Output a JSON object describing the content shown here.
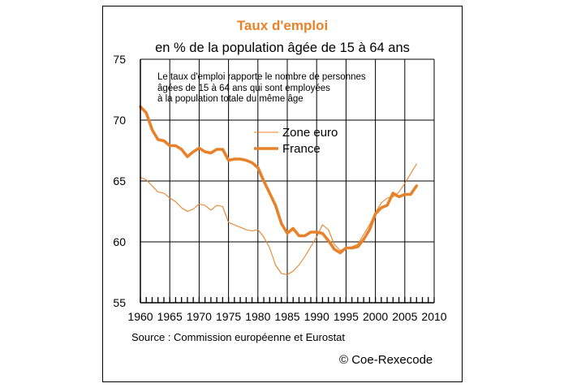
{
  "chart_data": {
    "type": "line",
    "title": "Taux d'emploi",
    "subtitle": "en % de la population âgée de 15 à 64 ans",
    "note_lines": [
      "Le taux d'emploi rapporte le nombre de personnes",
      "âgées de 15 à 64 ans qui sont employées",
      "à la population totale du même âge"
    ],
    "xlabel": "",
    "ylabel": "",
    "xlim": [
      1960,
      2010
    ],
    "ylim": [
      55,
      75
    ],
    "x_ticks": [
      1960,
      1965,
      1970,
      1975,
      1980,
      1985,
      1990,
      1995,
      2000,
      2005,
      2010
    ],
    "y_ticks": [
      55,
      60,
      65,
      70,
      75
    ],
    "grid": true,
    "legend_position": "upper-middle",
    "series": [
      {
        "name": "Zone euro",
        "color": "#e8822a",
        "style": "thin",
        "x": [
          1960,
          1961,
          1962,
          1963,
          1964,
          1965,
          1966,
          1967,
          1968,
          1969,
          1970,
          1971,
          1972,
          1973,
          1974,
          1975,
          1976,
          1977,
          1978,
          1979,
          1980,
          1981,
          1982,
          1983,
          1984,
          1985,
          1986,
          1987,
          1988,
          1989,
          1990,
          1991,
          1992,
          1993,
          1994,
          1995,
          1996,
          1997,
          1998,
          1999,
          2000,
          2001,
          2002,
          2003,
          2004,
          2005,
          2006,
          2007
        ],
        "values": [
          65.3,
          65.1,
          64.6,
          64.1,
          64.0,
          63.6,
          63.3,
          62.8,
          62.5,
          62.7,
          63.1,
          63.0,
          62.6,
          63.0,
          62.9,
          61.6,
          61.4,
          61.2,
          61.0,
          60.9,
          61.0,
          60.4,
          59.5,
          58.1,
          57.4,
          57.3,
          57.6,
          58.1,
          58.8,
          59.6,
          60.4,
          61.4,
          61.0,
          59.8,
          59.3,
          59.5,
          59.6,
          59.8,
          60.6,
          61.4,
          62.4,
          63.2,
          63.6,
          63.7,
          64.1,
          64.8,
          65.6,
          66.4
        ]
      },
      {
        "name": "France",
        "color": "#e8822a",
        "style": "thick",
        "x": [
          1960,
          1961,
          1962,
          1963,
          1964,
          1965,
          1966,
          1967,
          1968,
          1969,
          1970,
          1971,
          1972,
          1973,
          1974,
          1975,
          1976,
          1977,
          1978,
          1979,
          1980,
          1981,
          1982,
          1983,
          1984,
          1985,
          1986,
          1987,
          1988,
          1989,
          1990,
          1991,
          1992,
          1993,
          1994,
          1995,
          1996,
          1997,
          1998,
          1999,
          2000,
          2001,
          2002,
          2003,
          2004,
          2005,
          2006,
          2007
        ],
        "values": [
          71.1,
          70.6,
          69.2,
          68.4,
          68.3,
          67.9,
          67.9,
          67.6,
          67.0,
          67.4,
          67.7,
          67.4,
          67.3,
          67.6,
          67.6,
          66.7,
          66.8,
          66.8,
          66.7,
          66.5,
          66.1,
          65.0,
          64.0,
          63.0,
          61.5,
          60.7,
          61.1,
          60.5,
          60.5,
          60.8,
          60.8,
          60.7,
          60.1,
          59.4,
          59.1,
          59.5,
          59.5,
          59.6,
          60.2,
          61.0,
          62.3,
          62.8,
          63.0,
          64.0,
          63.7,
          63.9,
          63.9,
          64.6
        ]
      }
    ]
  },
  "source": "Source : Commission européenne et Eurostat",
  "copyright": "© Coe-Rexecode"
}
